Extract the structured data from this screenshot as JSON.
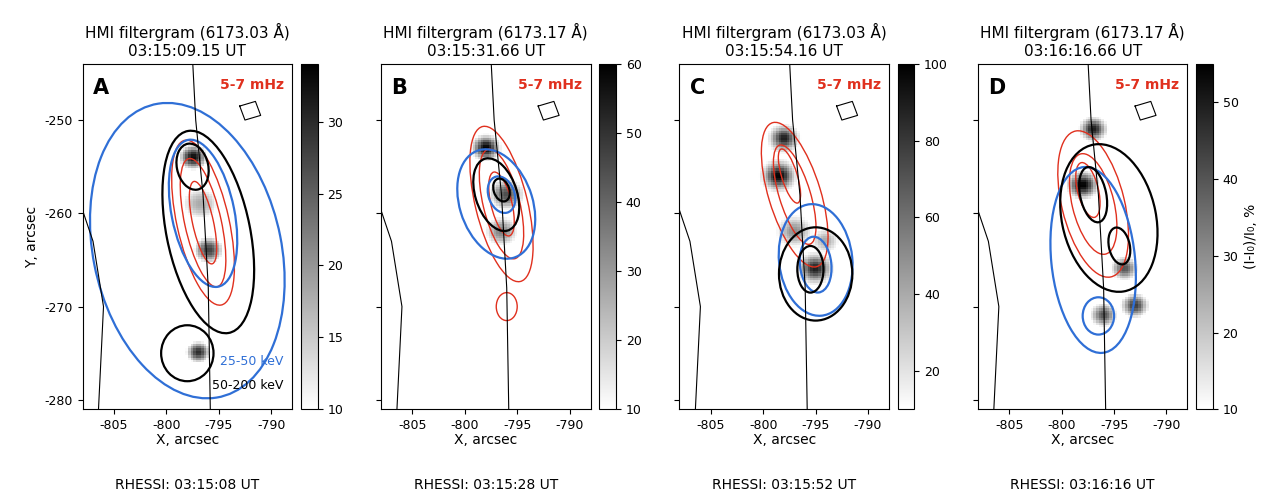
{
  "chart_data": [
    {
      "type": "image",
      "title": "HMI filtergram (6173.03 Å)",
      "time": "03:15:09.15 UT",
      "letter": "A",
      "band_label": "5-7 mHz",
      "rhessi_time": "RHESSI: 03:15:08 UT",
      "xlabel": "X, arcsec",
      "ylabel": "Y, arcsec",
      "xlim": [
        -808,
        -788
      ],
      "xticks": [
        -805,
        -800,
        -795,
        -790
      ],
      "ylim": [
        -281,
        -244
      ],
      "yticks": [
        -280,
        -270,
        -260,
        -250
      ],
      "clim": [
        10,
        34
      ],
      "cticks": [
        10,
        15,
        20,
        25,
        30
      ],
      "kernels": [
        [
          -797.5,
          -254,
          33,
          0.9
        ],
        [
          -796,
          -264,
          28,
          1.0
        ],
        [
          -797,
          -275,
          30,
          0.8
        ],
        [
          -796.8,
          -259,
          18,
          1.5
        ]
      ],
      "osc_contours": [
        [
          -796.5,
          -261,
          5,
          18,
          11
        ],
        [
          -796.5,
          -261,
          3.5,
          14,
          11
        ],
        [
          -796.5,
          -261,
          2,
          9,
          11
        ]
      ],
      "low_contours": [
        [
          -798,
          -264,
          18,
          32,
          10
        ],
        [
          -796.5,
          -260,
          6,
          16,
          10
        ]
      ],
      "high_contours": [
        [
          -796,
          -262,
          8,
          22,
          10
        ],
        [
          -798,
          -275,
          5,
          6,
          0
        ],
        [
          -797.5,
          -255,
          3,
          5,
          10
        ]
      ],
      "annotations": [
        {
          "text": "25-50 keV",
          "color": "#2f6fd6"
        },
        {
          "text": "50-200 keV",
          "color": "#000000"
        }
      ]
    },
    {
      "type": "image",
      "title": "HMI filtergram (6173.17 Å)",
      "time": "03:15:31.66 UT",
      "letter": "B",
      "band_label": "5-7 mHz",
      "rhessi_time": "RHESSI: 03:15:28 UT",
      "xlabel": "X, arcsec",
      "tick_labels": "x",
      "xlim": [
        -808,
        -788
      ],
      "xticks": [
        -805,
        -800,
        -795,
        -790
      ],
      "ylim": [
        -281,
        -244
      ],
      "yticks": [
        -280,
        -270,
        -260,
        -250
      ],
      "clim": [
        10,
        60
      ],
      "cticks": [
        10,
        20,
        30,
        40,
        50,
        60
      ],
      "kernels": [
        [
          -798,
          -253,
          60,
          0.8
        ],
        [
          -796,
          -258,
          45,
          1.0
        ],
        [
          -796.5,
          -262,
          35,
          1.0
        ]
      ],
      "osc_contours": [
        [
          -796.5,
          -259,
          5,
          17,
          12
        ],
        [
          -796.5,
          -259,
          3.5,
          12,
          12
        ],
        [
          -796.5,
          -259,
          2,
          7,
          12
        ],
        [
          -796,
          -270,
          2,
          3,
          0
        ]
      ],
      "low_contours": [
        [
          -797,
          -259,
          7,
          12,
          15
        ],
        [
          -796.5,
          -258,
          2.5,
          4,
          15
        ]
      ],
      "high_contours": [
        [
          -797,
          -258,
          4,
          8,
          15
        ],
        [
          -796.5,
          -257.5,
          1.5,
          2.5,
          15
        ]
      ]
    },
    {
      "type": "image",
      "title": "HMI filtergram (6173.03 Å)",
      "time": "03:15:54.16 UT",
      "letter": "C",
      "band_label": "5-7 mHz",
      "rhessi_time": "RHESSI: 03:15:52 UT",
      "xlabel": "X, arcsec",
      "tick_labels": "x",
      "xlim": [
        -808,
        -788
      ],
      "xticks": [
        -805,
        -800,
        -795,
        -790
      ],
      "ylim": [
        -281,
        -244
      ],
      "yticks": [
        -280,
        -270,
        -260,
        -250
      ],
      "clim": [
        10,
        100
      ],
      "cticks": [
        20,
        40,
        60,
        80,
        100
      ],
      "kernels": [
        [
          -798,
          -252,
          90,
          0.8
        ],
        [
          -798.5,
          -256,
          100,
          0.9
        ],
        [
          -797,
          -262,
          50,
          1.0
        ],
        [
          -795,
          -266,
          90,
          0.9
        ],
        [
          -794,
          -263,
          40,
          0.8
        ]
      ],
      "osc_contours": [
        [
          -797,
          -258,
          5,
          16,
          15
        ],
        [
          -797,
          -258,
          3,
          11,
          15
        ],
        [
          -797.5,
          -256,
          1.5,
          6,
          15
        ]
      ],
      "low_contours": [
        [
          -795,
          -265,
          7,
          12,
          5
        ],
        [
          -795,
          -265.5,
          3,
          6,
          5
        ]
      ],
      "high_contours": [
        [
          -795,
          -266.5,
          7,
          10,
          0
        ],
        [
          -795.5,
          -266,
          2.5,
          5,
          0
        ]
      ]
    },
    {
      "type": "image",
      "title": "HMI filtergram (6173.17 Å)",
      "time": "03:16:16.66 UT",
      "letter": "D",
      "band_label": "5-7 mHz",
      "rhessi_time": "RHESSI: 03:16:16 UT",
      "xlabel": "X, arcsec",
      "tick_labels": "x",
      "colorbar_label": "(I-I₀)/I₀, %",
      "xlim": [
        -808,
        -788
      ],
      "xticks": [
        -805,
        -800,
        -795,
        -790
      ],
      "ylim": [
        -281,
        -244
      ],
      "yticks": [
        -280,
        -270,
        -260,
        -250
      ],
      "clim": [
        10,
        55
      ],
      "cticks": [
        10,
        20,
        30,
        40,
        50
      ],
      "kernels": [
        [
          -797,
          -251,
          50,
          0.8
        ],
        [
          -798,
          -257,
          55,
          0.9
        ],
        [
          -794,
          -266,
          40,
          0.8
        ],
        [
          -793,
          -270,
          45,
          0.8
        ],
        [
          -796,
          -271,
          40,
          0.8
        ]
      ],
      "osc_contours": [
        [
          -797,
          -259,
          6,
          16,
          12
        ],
        [
          -797,
          -259,
          4,
          11,
          12
        ],
        [
          -797.5,
          -257.5,
          2,
          6,
          12
        ]
      ],
      "low_contours": [
        [
          -797,
          -265,
          8,
          20,
          5
        ],
        [
          -796.5,
          -271,
          3,
          4,
          0
        ]
      ],
      "high_contours": [
        [
          -795.5,
          -260.5,
          9,
          16,
          10
        ],
        [
          -797,
          -258,
          2.5,
          6,
          10
        ],
        [
          -794.5,
          -263.5,
          2,
          4,
          10
        ]
      ]
    }
  ],
  "colors": {
    "osc": "#e0301e",
    "low": "#2f6fd6",
    "high": "#000000"
  },
  "limb_lines": [
    [
      [
        -797.5,
        -243.5
      ],
      [
        -797.2,
        -250
      ],
      [
        -796.5,
        -258
      ],
      [
        -796,
        -268
      ],
      [
        -795.8,
        -281.5
      ]
    ],
    [
      [
        -808.5,
        -258
      ],
      [
        -807,
        -263
      ],
      [
        -806,
        -270
      ],
      [
        -806.5,
        -281.5
      ]
    ],
    [
      [
        -793,
        -248.5
      ],
      [
        -791.5,
        -248
      ],
      [
        -791,
        -249.5
      ],
      [
        -792.5,
        -250
      ],
      [
        -793,
        -248.5
      ]
    ]
  ]
}
